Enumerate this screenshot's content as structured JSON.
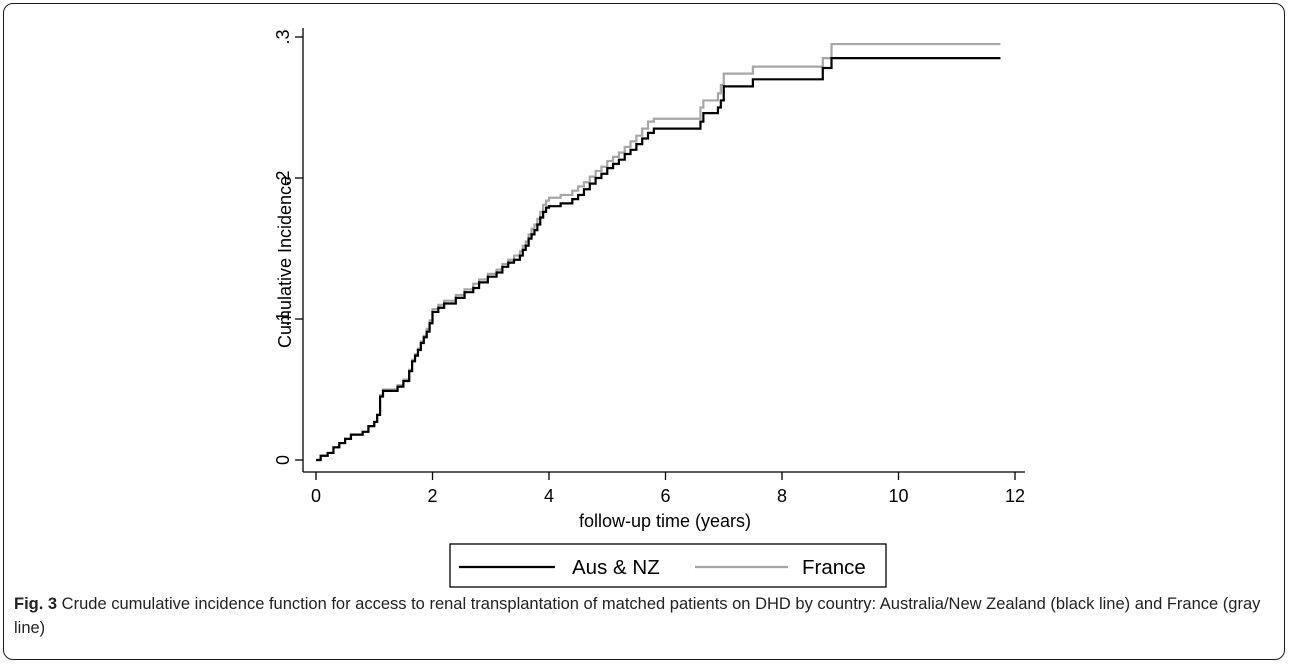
{
  "chart_data": {
    "type": "line",
    "step": true,
    "xlabel": "follow-up time (years)",
    "ylabel": "Cumulative Incidence",
    "xlim": [
      0,
      12
    ],
    "ylim": [
      0,
      0.3
    ],
    "x_ticks": [
      0,
      2,
      4,
      6,
      8,
      10,
      12
    ],
    "x_tick_labels": [
      "0",
      "2",
      "4",
      "6",
      "8",
      "10",
      "12"
    ],
    "y_ticks": [
      0,
      0.1,
      0.2,
      0.3
    ],
    "y_tick_labels": [
      "0",
      ".1",
      ".2",
      ".3"
    ],
    "grid": false,
    "legend_position": "bottom",
    "series": [
      {
        "name": "Aus & NZ",
        "color": "#000000",
        "points": [
          [
            0,
            0
          ],
          [
            0.08,
            0.003
          ],
          [
            0.2,
            0.005
          ],
          [
            0.3,
            0.009
          ],
          [
            0.4,
            0.012
          ],
          [
            0.5,
            0.015
          ],
          [
            0.6,
            0.018
          ],
          [
            0.8,
            0.02
          ],
          [
            0.9,
            0.024
          ],
          [
            1.0,
            0.027
          ],
          [
            1.05,
            0.032
          ],
          [
            1.1,
            0.045
          ],
          [
            1.15,
            0.049
          ],
          [
            1.4,
            0.052
          ],
          [
            1.5,
            0.056
          ],
          [
            1.6,
            0.063
          ],
          [
            1.65,
            0.07
          ],
          [
            1.7,
            0.074
          ],
          [
            1.75,
            0.078
          ],
          [
            1.8,
            0.083
          ],
          [
            1.85,
            0.087
          ],
          [
            1.9,
            0.091
          ],
          [
            1.95,
            0.097
          ],
          [
            2.0,
            0.105
          ],
          [
            2.1,
            0.108
          ],
          [
            2.2,
            0.111
          ],
          [
            2.4,
            0.115
          ],
          [
            2.55,
            0.119
          ],
          [
            2.7,
            0.122
          ],
          [
            2.8,
            0.126
          ],
          [
            2.95,
            0.13
          ],
          [
            3.1,
            0.133
          ],
          [
            3.2,
            0.137
          ],
          [
            3.3,
            0.14
          ],
          [
            3.4,
            0.142
          ],
          [
            3.5,
            0.145
          ],
          [
            3.55,
            0.149
          ],
          [
            3.6,
            0.152
          ],
          [
            3.65,
            0.157
          ],
          [
            3.7,
            0.16
          ],
          [
            3.75,
            0.163
          ],
          [
            3.8,
            0.167
          ],
          [
            3.85,
            0.172
          ],
          [
            3.9,
            0.176
          ],
          [
            3.95,
            0.179
          ],
          [
            4.0,
            0.18
          ],
          [
            4.2,
            0.182
          ],
          [
            4.4,
            0.185
          ],
          [
            4.5,
            0.188
          ],
          [
            4.6,
            0.192
          ],
          [
            4.7,
            0.196
          ],
          [
            4.8,
            0.2
          ],
          [
            4.9,
            0.203
          ],
          [
            5.0,
            0.207
          ],
          [
            5.1,
            0.21
          ],
          [
            5.2,
            0.213
          ],
          [
            5.3,
            0.217
          ],
          [
            5.4,
            0.22
          ],
          [
            5.5,
            0.224
          ],
          [
            5.6,
            0.228
          ],
          [
            5.7,
            0.232
          ],
          [
            5.8,
            0.235
          ],
          [
            6.6,
            0.24
          ],
          [
            6.65,
            0.246
          ],
          [
            6.9,
            0.25
          ],
          [
            6.95,
            0.255
          ],
          [
            7.0,
            0.265
          ],
          [
            7.5,
            0.27
          ],
          [
            8.7,
            0.278
          ],
          [
            8.85,
            0.285
          ],
          [
            11.75,
            0.285
          ]
        ]
      },
      {
        "name": "France",
        "color": "#a6a6a6",
        "points": [
          [
            0,
            0
          ],
          [
            0.08,
            0.003
          ],
          [
            0.2,
            0.005
          ],
          [
            0.3,
            0.009
          ],
          [
            0.4,
            0.012
          ],
          [
            0.5,
            0.015
          ],
          [
            0.6,
            0.018
          ],
          [
            0.8,
            0.02
          ],
          [
            0.9,
            0.024
          ],
          [
            1.0,
            0.027
          ],
          [
            1.05,
            0.032
          ],
          [
            1.1,
            0.046
          ],
          [
            1.15,
            0.05
          ],
          [
            1.4,
            0.053
          ],
          [
            1.5,
            0.057
          ],
          [
            1.6,
            0.064
          ],
          [
            1.65,
            0.071
          ],
          [
            1.7,
            0.075
          ],
          [
            1.75,
            0.079
          ],
          [
            1.8,
            0.084
          ],
          [
            1.85,
            0.088
          ],
          [
            1.9,
            0.093
          ],
          [
            1.95,
            0.099
          ],
          [
            2.0,
            0.107
          ],
          [
            2.1,
            0.11
          ],
          [
            2.2,
            0.113
          ],
          [
            2.4,
            0.117
          ],
          [
            2.55,
            0.121
          ],
          [
            2.7,
            0.125
          ],
          [
            2.8,
            0.128
          ],
          [
            2.95,
            0.132
          ],
          [
            3.1,
            0.135
          ],
          [
            3.2,
            0.139
          ],
          [
            3.3,
            0.142
          ],
          [
            3.4,
            0.145
          ],
          [
            3.5,
            0.148
          ],
          [
            3.55,
            0.152
          ],
          [
            3.6,
            0.155
          ],
          [
            3.65,
            0.16
          ],
          [
            3.7,
            0.164
          ],
          [
            3.75,
            0.167
          ],
          [
            3.8,
            0.171
          ],
          [
            3.85,
            0.176
          ],
          [
            3.9,
            0.181
          ],
          [
            3.95,
            0.184
          ],
          [
            4.0,
            0.186
          ],
          [
            4.2,
            0.188
          ],
          [
            4.4,
            0.191
          ],
          [
            4.5,
            0.194
          ],
          [
            4.6,
            0.197
          ],
          [
            4.7,
            0.201
          ],
          [
            4.8,
            0.205
          ],
          [
            4.9,
            0.208
          ],
          [
            5.0,
            0.212
          ],
          [
            5.1,
            0.215
          ],
          [
            5.2,
            0.218
          ],
          [
            5.3,
            0.222
          ],
          [
            5.4,
            0.226
          ],
          [
            5.5,
            0.23
          ],
          [
            5.6,
            0.235
          ],
          [
            5.7,
            0.24
          ],
          [
            5.8,
            0.242
          ],
          [
            6.6,
            0.25
          ],
          [
            6.65,
            0.255
          ],
          [
            6.9,
            0.26
          ],
          [
            6.95,
            0.266
          ],
          [
            7.0,
            0.274
          ],
          [
            7.5,
            0.279
          ],
          [
            8.7,
            0.285
          ],
          [
            8.85,
            0.295
          ],
          [
            11.75,
            0.295
          ]
        ]
      }
    ]
  },
  "caption": {
    "label": "Fig. 3",
    "text": " Crude cumulative incidence function for access to renal transplantation of matched patients on DHD by country: Australia/New Zealand (black line) and France (gray line)"
  }
}
